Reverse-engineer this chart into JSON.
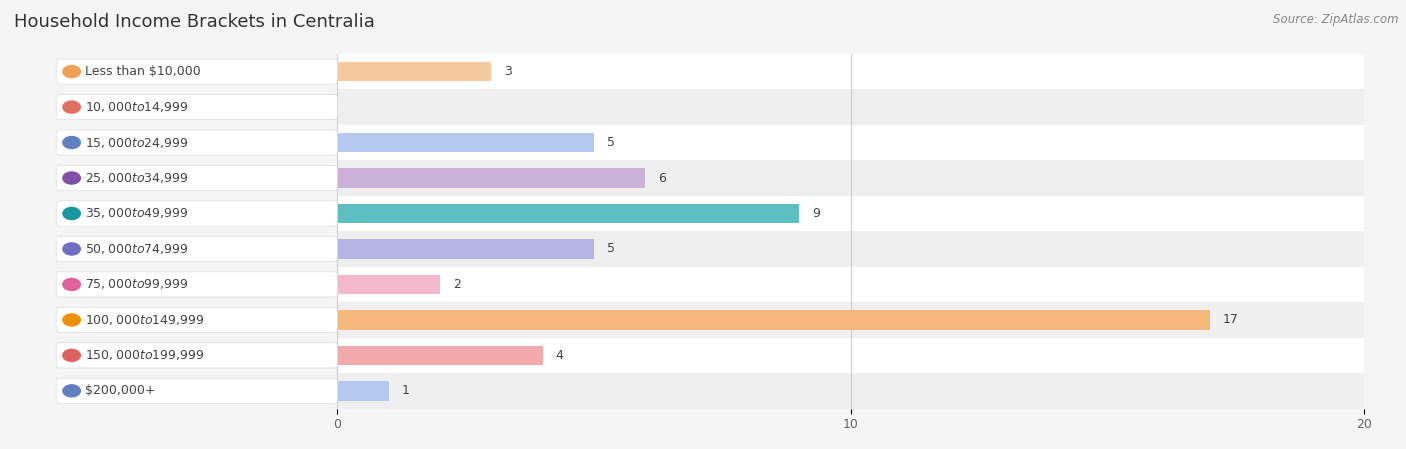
{
  "title": "Household Income Brackets in Centralia",
  "source": "Source: ZipAtlas.com",
  "categories": [
    "Less than $10,000",
    "$10,000 to $14,999",
    "$15,000 to $24,999",
    "$25,000 to $34,999",
    "$35,000 to $49,999",
    "$50,000 to $74,999",
    "$75,000 to $99,999",
    "$100,000 to $149,999",
    "$150,000 to $199,999",
    "$200,000+"
  ],
  "values": [
    3,
    0,
    5,
    6,
    9,
    5,
    2,
    17,
    4,
    1
  ],
  "bar_colors": [
    "#f7c99e",
    "#f2aea4",
    "#b3c9ee",
    "#cab1d8",
    "#5dbfc2",
    "#b5b5e5",
    "#f4b8cc",
    "#f5b87a",
    "#f2a9a9",
    "#b3c9ee"
  ],
  "dot_colors": [
    "#f0a055",
    "#e07060",
    "#6080c0",
    "#8050a8",
    "#1898a0",
    "#7070c0",
    "#e060a0",
    "#f0900a",
    "#e06060",
    "#6080c0"
  ],
  "xlim": [
    0,
    20
  ],
  "xticks": [
    0,
    10,
    20
  ],
  "bar_height": 0.55,
  "background_color": "#f5f5f5",
  "row_bg_light": "#ffffff",
  "row_bg_dark": "#efefef",
  "title_fontsize": 13,
  "label_fontsize": 9,
  "value_fontsize": 9,
  "source_fontsize": 8.5
}
